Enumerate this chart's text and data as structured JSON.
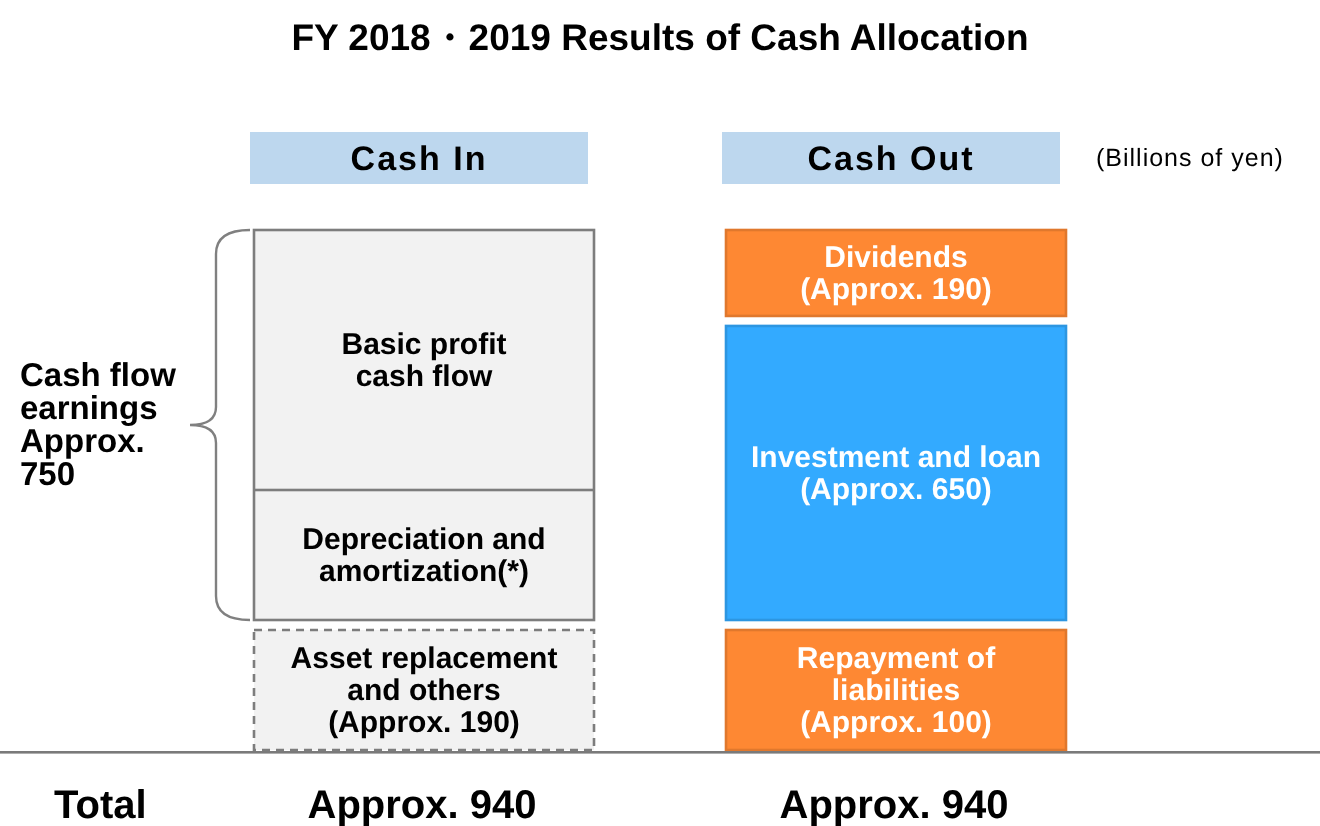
{
  "chart_data": {
    "type": "other",
    "title": "FY 2018・2019 Results of Cash Allocation",
    "categories": [
      "Cash In",
      "Cash Out"
    ],
    "series": [
      {
        "name": "Dividends",
        "values": [
          null,
          190
        ],
        "value_labels": [
          null,
          "(Approx. 190)"
        ],
        "color": "#fe8833"
      },
      {
        "name": "Investment and loan",
        "values": [
          null,
          650
        ],
        "value_labels": [
          null,
          "(Approx. 650)"
        ],
        "color": "#33aaff"
      },
      {
        "name": "Repayment of\nliabilities",
        "values": [
          null,
          100
        ],
        "value_labels": [
          null,
          "(Approx. 100)"
        ],
        "color": "#fe8833"
      },
      {
        "values": [
          750,
          null
        ],
        "value_labels": [
          "Approx. 750",
          null
        ],
        "color": "#f2f2f2"
      },
      {
        "name": "Asset replacement\nand others",
        "values": [
          190,
          null
        ],
        "value_labels": [
          "(Approx. 190)",
          null
        ],
        "color": "#f2f2f2",
        "line_style": "dashed"
      }
    ],
    "totals": [
      "Approx. 940",
      "Approx. 940"
    ],
    "annotations": [
      "(Billions of yen)",
      "Cash flow earnings",
      {
        "text": "Basic profit\ncash flow",
        "x": "Cash In"
      },
      {
        "text": "Depreciation and\namortization(*)",
        "x": "Cash In"
      },
      "Total"
    ]
  }
}
